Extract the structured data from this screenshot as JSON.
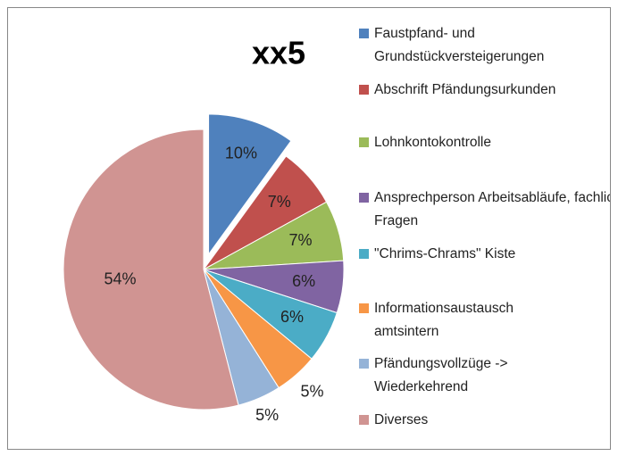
{
  "chart_data": {
    "type": "pie",
    "title": "xx5",
    "categories": [
      "Faustpfand- und Grundstückversteigerungen",
      "Abschrift Pfändungsurkunden",
      "Lohnkontokontrolle",
      "Ansprechperson Arbeitsabläufe, fachliche Fragen",
      "\"Chrims-Chrams\" Kiste",
      "Informationsaustausch amtsintern",
      "Pfändungsvollzüge -> Wiederkehrend",
      "Diverses"
    ],
    "values": [
      10,
      7,
      7,
      6,
      6,
      5,
      5,
      54
    ],
    "value_labels": [
      "10%",
      "7%",
      "7%",
      "6%",
      "6%",
      "5%",
      "5%",
      "54%"
    ],
    "colors": [
      "#4F81BD",
      "#C0504D",
      "#9BBB59",
      "#8064A2",
      "#4BACC6",
      "#F79646",
      "#95B3D7",
      "#D09492"
    ],
    "legend": "right"
  }
}
